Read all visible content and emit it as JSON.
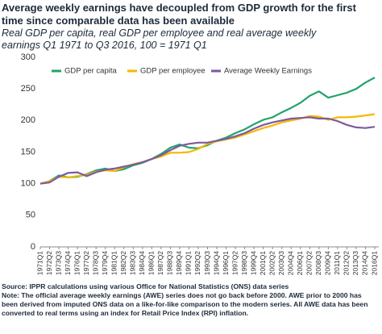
{
  "chart_data": {
    "type": "line",
    "title": "Average weekly earnings have decoupled from GDP growth for the first time since comparable data has been available",
    "subtitle": "Real GDP per capita, real GDP per employee and real average weekly earnings Q1 1971 to Q3 2016, 100 = 1971 Q1",
    "categories": [
      "1971Q1",
      "1972Q2",
      "1973Q3",
      "1974Q4",
      "1976Q1",
      "1977Q2",
      "1978Q3",
      "1979Q4",
      "1981Q1",
      "1982Q2",
      "1983Q3",
      "1984Q4",
      "1986Q1",
      "1987Q2",
      "1988Q3",
      "1989Q4",
      "1991Q1",
      "1992Q2",
      "1993Q3",
      "1994Q4",
      "1996Q1",
      "1997Q2",
      "1998Q3",
      "1999Q4",
      "2001Q1",
      "2002Q2",
      "2003Q3",
      "2004Q4",
      "2006Q1",
      "2007Q2",
      "2008Q3",
      "2009Q4",
      "2011Q1",
      "2012Q2",
      "2013Q3",
      "2014Q4",
      "2016Q1"
    ],
    "series": [
      {
        "name": "GDP  per capita",
        "color": "#22a36a",
        "values": [
          100,
          104,
          113,
          110,
          111,
          115,
          121,
          124,
          120,
          123,
          129,
          133,
          139,
          147,
          157,
          162,
          157,
          156,
          161,
          168,
          173,
          180,
          186,
          194,
          201,
          205,
          213,
          220,
          228,
          239,
          246,
          236,
          240,
          244,
          250,
          260,
          268
        ]
      },
      {
        "name": "GDP per employee",
        "color": "#f5b800",
        "values": [
          100,
          104,
          111,
          110,
          112,
          114,
          119,
          121,
          120,
          126,
          131,
          134,
          139,
          143,
          149,
          149,
          150,
          155,
          163,
          167,
          170,
          173,
          178,
          183,
          188,
          192,
          197,
          200,
          203,
          207,
          206,
          201,
          205,
          205,
          206,
          208,
          210
        ]
      },
      {
        "name": "Average Weekly Earnings",
        "color": "#7d5a9e",
        "values": [
          100,
          102,
          111,
          117,
          118,
          112,
          118,
          122,
          124,
          127,
          130,
          134,
          139,
          145,
          153,
          160,
          163,
          165,
          165,
          168,
          171,
          175,
          180,
          187,
          193,
          197,
          200,
          203,
          204,
          205,
          203,
          203,
          199,
          193,
          189,
          188,
          190
        ]
      }
    ],
    "ylim": [
      0,
      300
    ],
    "yticks": [
      0,
      50,
      100,
      150,
      200,
      250,
      300
    ],
    "grid": false,
    "notes": [
      "Source: IPPR calculations using various Office for National Statistics (ONS) data series",
      "Note: The official average weekly earnings (AWE) series does not go back before 2000. AWE prior to 2000 has been derived from imputed ONS data on a like-for-like comparison to the modern series. All AWE data has been converted to real terms using an index for Retail Price Index (RPI) inflation."
    ]
  }
}
